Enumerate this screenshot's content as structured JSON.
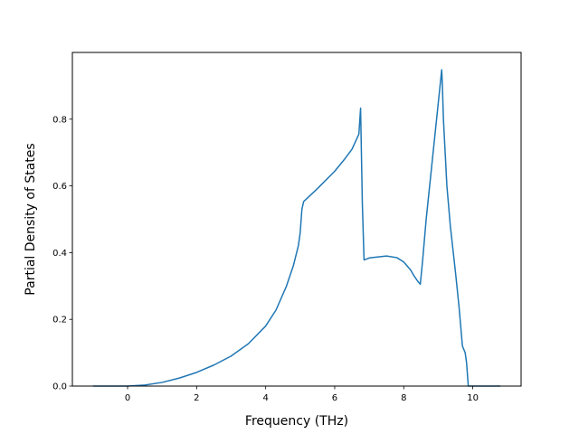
{
  "chart_data": {
    "type": "line",
    "title": "",
    "xlabel": "Frequency (THz)",
    "ylabel": "Partial Density of States",
    "xlim": [
      -1.6,
      11.4
    ],
    "ylim": [
      0.0,
      1.0
    ],
    "xticks": [
      0,
      2,
      4,
      6,
      8,
      10
    ],
    "yticks": [
      0.0,
      0.2,
      0.4,
      0.6,
      0.8
    ],
    "xtick_labels": [
      "0",
      "2",
      "4",
      "6",
      "8",
      "10"
    ],
    "ytick_labels": [
      "0.0",
      "0.2",
      "0.4",
      "0.6",
      "0.8"
    ],
    "grid": false,
    "legend": "none",
    "series": [
      {
        "color": "#1f77b4",
        "x": [
          -1.0,
          -0.5,
          0.0,
          0.5,
          1.0,
          1.5,
          2.0,
          2.5,
          3.0,
          3.5,
          4.0,
          4.3,
          4.6,
          4.8,
          4.95,
          5.0,
          5.05,
          5.1,
          5.5,
          6.0,
          6.3,
          6.5,
          6.7,
          6.75,
          6.8,
          6.85,
          7.0,
          7.5,
          7.8,
          8.0,
          8.2,
          8.3,
          8.4,
          8.48,
          8.55,
          8.65,
          9.1,
          9.12,
          9.15,
          9.25,
          9.35,
          9.5,
          9.6,
          9.7,
          9.78,
          9.82,
          9.87,
          10.0,
          10.8
        ],
        "y": [
          0.0,
          0.0,
          0.0,
          0.003,
          0.011,
          0.024,
          0.041,
          0.063,
          0.09,
          0.127,
          0.18,
          0.228,
          0.299,
          0.36,
          0.422,
          0.46,
          0.53,
          0.553,
          0.592,
          0.644,
          0.682,
          0.71,
          0.755,
          0.833,
          0.55,
          0.378,
          0.384,
          0.39,
          0.385,
          0.372,
          0.348,
          0.33,
          0.315,
          0.305,
          0.38,
          0.5,
          0.948,
          0.9,
          0.8,
          0.6,
          0.48,
          0.34,
          0.24,
          0.12,
          0.1,
          0.07,
          0.0,
          0.0,
          0.0
        ]
      }
    ]
  }
}
